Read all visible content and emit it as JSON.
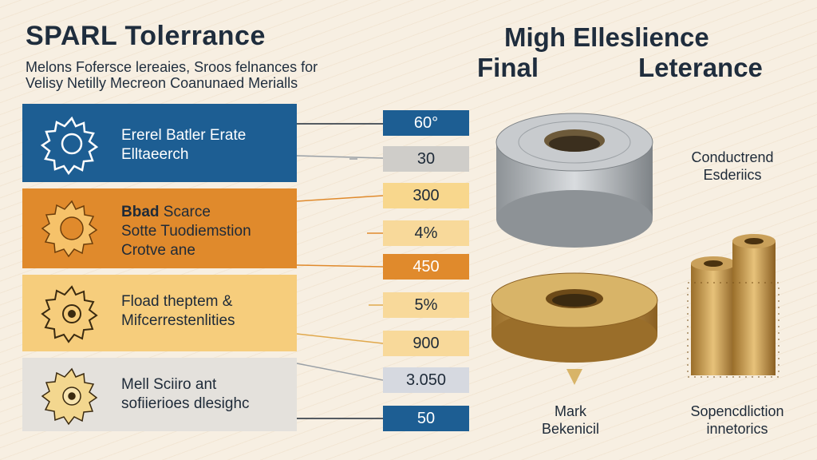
{
  "header": {
    "title_left": "SPARL Tolerrance",
    "subtitle_line1": "Melons Fofersce lereaies, Sroos felnances for",
    "subtitle_line2": "Velisy Netilly Mecreon Coanunaed Merialls",
    "title_right_line1": "Migh Elleslience",
    "title_right_line2_a": "Final",
    "title_right_line2_b": "Leterance"
  },
  "categories": [
    {
      "lines": [
        "Ererel Batler Erate",
        "Elltaeerch"
      ],
      "color": "#1d5e93"
    },
    {
      "bold_prefix": "Bbad",
      "first_rest": " Scarce",
      "lines": [
        "Sotte Tuodiemstion",
        "Crotve ane"
      ],
      "color": "#e08a2c"
    },
    {
      "lines": [
        "Fload theptem &",
        "Mifcerrestenlities"
      ],
      "color": "#f6cd7c"
    },
    {
      "lines": [
        "Mell Sciiro ant",
        "sofiierioes dlesighc"
      ],
      "color": "#e4e1dc"
    }
  ],
  "values": [
    "60°",
    "30",
    "300",
    "4%",
    "450",
    "5%",
    "900",
    "3.050",
    "50"
  ],
  "right_labels": {
    "conductive_line1": "Conductrend",
    "conductive_line2": "Esderiics",
    "mark_line1": "Mark",
    "mark_line2": "Bekenicil",
    "super_line1": "Sopencdliction",
    "super_line2": "innetorics"
  },
  "icons": [
    "gear-icon",
    "gear-icon",
    "gear-icon",
    "gear-icon"
  ]
}
